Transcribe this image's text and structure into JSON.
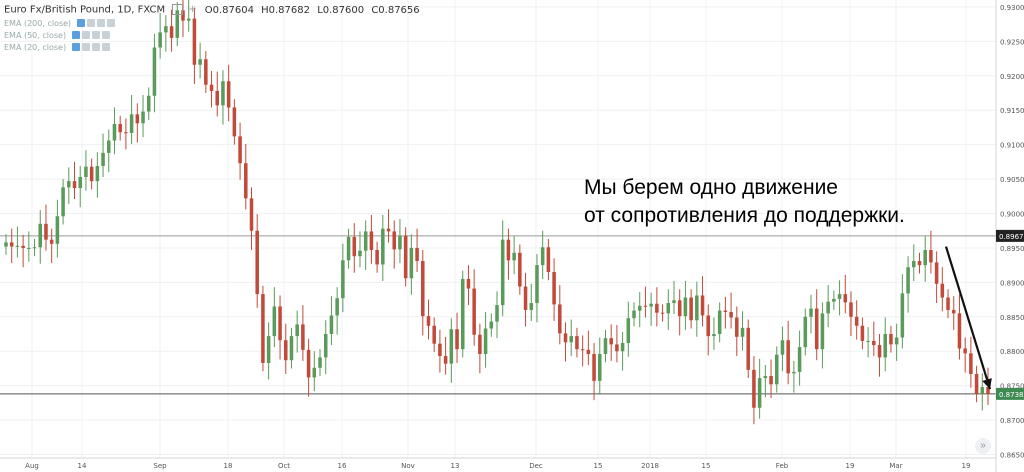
{
  "legend": {
    "title": "Euro Fx/British Pound, 1D, FXCM",
    "open": "O0.87604",
    "high": "H0.87682",
    "low": "L0.87600",
    "close": "C0.87656",
    "indicators": [
      "EMA (200, close)",
      "EMA (50, close)",
      "EMA (20, close)"
    ]
  },
  "annotation": {
    "line1": "Мы берем одно движение",
    "line2": "от сопротивления до поддержки."
  },
  "price_labels": {
    "resistance": "0.89675",
    "current": "0.87381"
  },
  "scroll_button": "»",
  "colors": {
    "up": "#5a9a5a",
    "down": "#c24a3a",
    "current_label_bg": "#3f8a52",
    "resistance_label_bg": "#222222",
    "level_line": "#999999"
  },
  "chart_data": {
    "type": "candlestick",
    "y_ticks": [
      "0.93000",
      "0.92500",
      "0.92000",
      "0.91500",
      "0.91000",
      "0.90500",
      "0.90000",
      "0.89500",
      "0.89000",
      "0.88500",
      "0.88000",
      "0.87500",
      "0.87000",
      "0.86500"
    ],
    "ylim": [
      0.8645,
      0.931
    ],
    "x_ticks": [
      "Aug",
      "14",
      "Sep",
      "18",
      "Oct",
      "16",
      "Nov",
      "13",
      "Dec",
      "15",
      "2018",
      "15",
      "Feb",
      "19",
      "Mar",
      "19"
    ],
    "horizontal_levels": [
      0.89675,
      0.87381
    ],
    "trend_arrow": {
      "from": [
        0.8952,
        0
      ],
      "to": [
        0.8745,
        1
      ]
    },
    "closes": [
      0.8958,
      0.8952,
      0.8953,
      0.895,
      0.895,
      0.8951,
      0.8985,
      0.8962,
      0.8956,
      0.8996,
      0.9038,
      0.9047,
      0.9037,
      0.9053,
      0.9068,
      0.9047,
      0.9069,
      0.9088,
      0.9106,
      0.913,
      0.9118,
      0.9117,
      0.9144,
      0.9131,
      0.9148,
      0.9171,
      0.9241,
      0.9263,
      0.9272,
      0.9255,
      0.9295,
      0.928,
      0.9283,
      0.9216,
      0.9224,
      0.9187,
      0.9178,
      0.9157,
      0.9192,
      0.9154,
      0.9112,
      0.9073,
      0.9022,
      0.8975,
      0.8883,
      0.8783,
      0.8822,
      0.8865,
      0.8816,
      0.8787,
      0.8822,
      0.8839,
      0.8802,
      0.8762,
      0.8776,
      0.8791,
      0.8825,
      0.8852,
      0.8877,
      0.8932,
      0.8966,
      0.8938,
      0.8946,
      0.8974,
      0.8947,
      0.8926,
      0.8978,
      0.8974,
      0.8948,
      0.8968,
      0.8906,
      0.895,
      0.8931,
      0.8851,
      0.8837,
      0.8811,
      0.8793,
      0.8782,
      0.8832,
      0.8803,
      0.8905,
      0.8891,
      0.8824,
      0.8796,
      0.8833,
      0.8843,
      0.8867,
      0.8962,
      0.8932,
      0.8943,
      0.8894,
      0.886,
      0.887,
      0.8925,
      0.8951,
      0.8915,
      0.8868,
      0.8826,
      0.8813,
      0.8822,
      0.8803,
      0.8802,
      0.8796,
      0.8757,
      0.8796,
      0.8819,
      0.881,
      0.88,
      0.8812,
      0.8848,
      0.8859,
      0.8866,
      0.8865,
      0.8869,
      0.8856,
      0.8855,
      0.887,
      0.8874,
      0.8851,
      0.8878,
      0.8845,
      0.8881,
      0.8852,
      0.8822,
      0.8825,
      0.8859,
      0.8857,
      0.8849,
      0.8821,
      0.8834,
      0.8773,
      0.8718,
      0.8761,
      0.8764,
      0.8752,
      0.8795,
      0.8816,
      0.8768,
      0.877,
      0.8806,
      0.885,
      0.8862,
      0.8803,
      0.8855,
      0.8872,
      0.8876,
      0.8883,
      0.8871,
      0.885,
      0.8837,
      0.8815,
      0.8815,
      0.8809,
      0.8791,
      0.8825,
      0.881,
      0.882,
      0.8884,
      0.8922,
      0.8931,
      0.8925,
      0.8947,
      0.8929,
      0.8898,
      0.8878,
      0.886,
      0.8855,
      0.8804,
      0.8797,
      0.8767,
      0.8738,
      0.8748,
      0.8738
    ],
    "opens": [
      0.8952,
      0.8958,
      0.8952,
      0.8953,
      0.895,
      0.895,
      0.8951,
      0.8985,
      0.8962,
      0.8956,
      0.8996,
      0.9038,
      0.9047,
      0.9037,
      0.9053,
      0.9068,
      0.9047,
      0.9069,
      0.9088,
      0.9106,
      0.913,
      0.9118,
      0.9117,
      0.9144,
      0.9131,
      0.9148,
      0.9171,
      0.9241,
      0.9263,
      0.9272,
      0.9255,
      0.9295,
      0.928,
      0.9283,
      0.9216,
      0.9224,
      0.9187,
      0.9178,
      0.9157,
      0.9192,
      0.9154,
      0.9112,
      0.9073,
      0.9022,
      0.8975,
      0.8883,
      0.8783,
      0.8822,
      0.8865,
      0.8816,
      0.8787,
      0.8822,
      0.8839,
      0.8802,
      0.8762,
      0.8776,
      0.8791,
      0.8825,
      0.8852,
      0.8877,
      0.8932,
      0.8966,
      0.8938,
      0.8946,
      0.8974,
      0.8947,
      0.8926,
      0.8978,
      0.8974,
      0.8948,
      0.8968,
      0.8906,
      0.895,
      0.8931,
      0.8851,
      0.8837,
      0.8811,
      0.8793,
      0.8782,
      0.8832,
      0.8803,
      0.8905,
      0.8891,
      0.8824,
      0.8796,
      0.8833,
      0.8843,
      0.8867,
      0.8962,
      0.8932,
      0.8943,
      0.8894,
      0.886,
      0.887,
      0.8925,
      0.8951,
      0.8915,
      0.8868,
      0.8826,
      0.8813,
      0.8822,
      0.8803,
      0.8802,
      0.8796,
      0.8757,
      0.8796,
      0.8819,
      0.881,
      0.88,
      0.8812,
      0.8848,
      0.8859,
      0.8866,
      0.8865,
      0.8869,
      0.8856,
      0.8855,
      0.887,
      0.8874,
      0.8851,
      0.8878,
      0.8845,
      0.8881,
      0.8852,
      0.8822,
      0.8825,
      0.8859,
      0.8857,
      0.8849,
      0.8821,
      0.8834,
      0.8773,
      0.8718,
      0.8761,
      0.8764,
      0.8752,
      0.8795,
      0.8816,
      0.8768,
      0.877,
      0.8806,
      0.885,
      0.8862,
      0.8803,
      0.8855,
      0.8872,
      0.8876,
      0.8883,
      0.8871,
      0.885,
      0.8837,
      0.8815,
      0.8815,
      0.8809,
      0.8791,
      0.8825,
      0.881,
      0.882,
      0.8884,
      0.8922,
      0.8931,
      0.8925,
      0.8947,
      0.8929,
      0.8898,
      0.8878,
      0.886,
      0.8855,
      0.8804,
      0.8797,
      0.8767,
      0.8738,
      0.8748
    ]
  }
}
